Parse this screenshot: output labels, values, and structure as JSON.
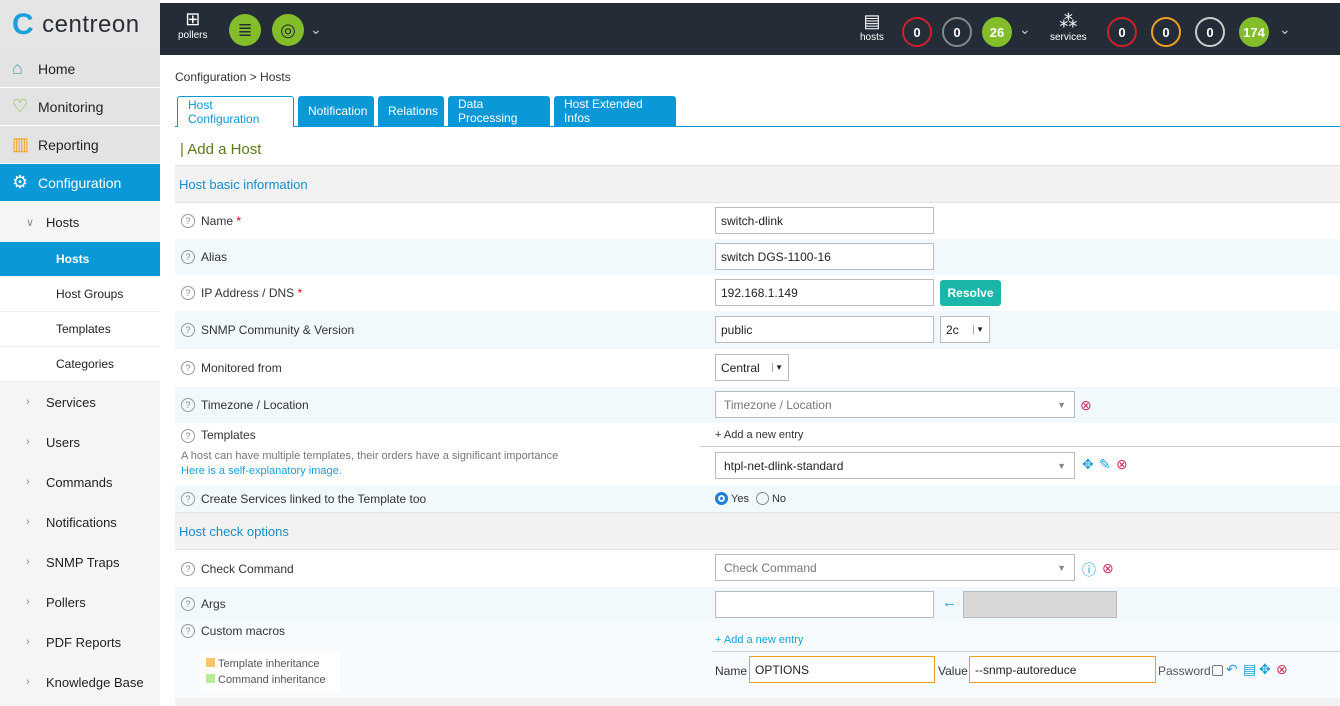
{
  "brand": {
    "name": "centreon"
  },
  "topbar": {
    "pollers_label": "pollers",
    "hosts_label": "hosts",
    "services_label": "services",
    "hosts_counts": [
      {
        "value": "0",
        "color": "#d0202a"
      },
      {
        "value": "0",
        "color": "#888888"
      },
      {
        "value": "26",
        "color": "#84bd2a"
      }
    ],
    "services_counts": [
      {
        "value": "0",
        "color": "#d0202a"
      },
      {
        "value": "0",
        "color": "#f0a020"
      },
      {
        "value": "0",
        "color": "#cccccc"
      },
      {
        "value": "174",
        "color": "#84bd2a"
      }
    ]
  },
  "sidebar": {
    "menu": [
      {
        "label": "Home",
        "icon": "home-icon"
      },
      {
        "label": "Monitoring",
        "icon": "heartbeat-icon"
      },
      {
        "label": "Reporting",
        "icon": "chart-board-icon"
      },
      {
        "label": "Configuration",
        "icon": "gear-icon"
      }
    ],
    "hosts_group": "Hosts",
    "hosts_sub": [
      "Hosts",
      "Host Groups",
      "Templates",
      "Categories"
    ],
    "others": [
      "Services",
      "Users",
      "Commands",
      "Notifications",
      "SNMP Traps",
      "Pollers",
      "PDF Reports",
      "Knowledge Base"
    ]
  },
  "breadcrumb": "Configuration  >  Hosts",
  "tabs": [
    "Host Configuration",
    "Notification",
    "Relations",
    "Data Processing",
    "Host Extended Infos"
  ],
  "page_title": "| Add a Host",
  "form": {
    "section1": "Host basic information",
    "name_label": "Name",
    "name_value": "switch-dlink",
    "alias_label": "Alias",
    "alias_value": "switch DGS-1100-16",
    "ip_label": "IP Address / DNS",
    "ip_value": "192.168.1.149",
    "resolve": "Resolve",
    "snmp_label": "SNMP Community & Version",
    "snmp_value": "public",
    "snmp_version": "2c",
    "monitored_label": "Monitored from",
    "monitored_value": "Central",
    "tz_label": "Timezone / Location",
    "tz_placeholder": "Timezone / Location",
    "templates_label": "Templates",
    "templates_help": "A host can have multiple templates, their orders have a significant importance",
    "templates_link": "Here is a self-explanatory image.",
    "add_entry": "+ Add a new entry",
    "template_value": "htpl-net-dlink-standard",
    "create_services_label": "Create Services linked to the Template too",
    "yes": "Yes",
    "no": "No",
    "section2": "Host check options",
    "check_label": "Check Command",
    "check_placeholder": "Check Command",
    "args_label": "Args",
    "macros_label": "Custom macros",
    "template_inh": "Template inheritance",
    "command_inh": "Command inheritance",
    "macro_add": "+ Add a new entry",
    "macro_name_label": "Name",
    "macro_name": "OPTIONS",
    "macro_value_label": "Value",
    "macro_value": "--snmp-autoreduce",
    "password_label": "Password"
  }
}
